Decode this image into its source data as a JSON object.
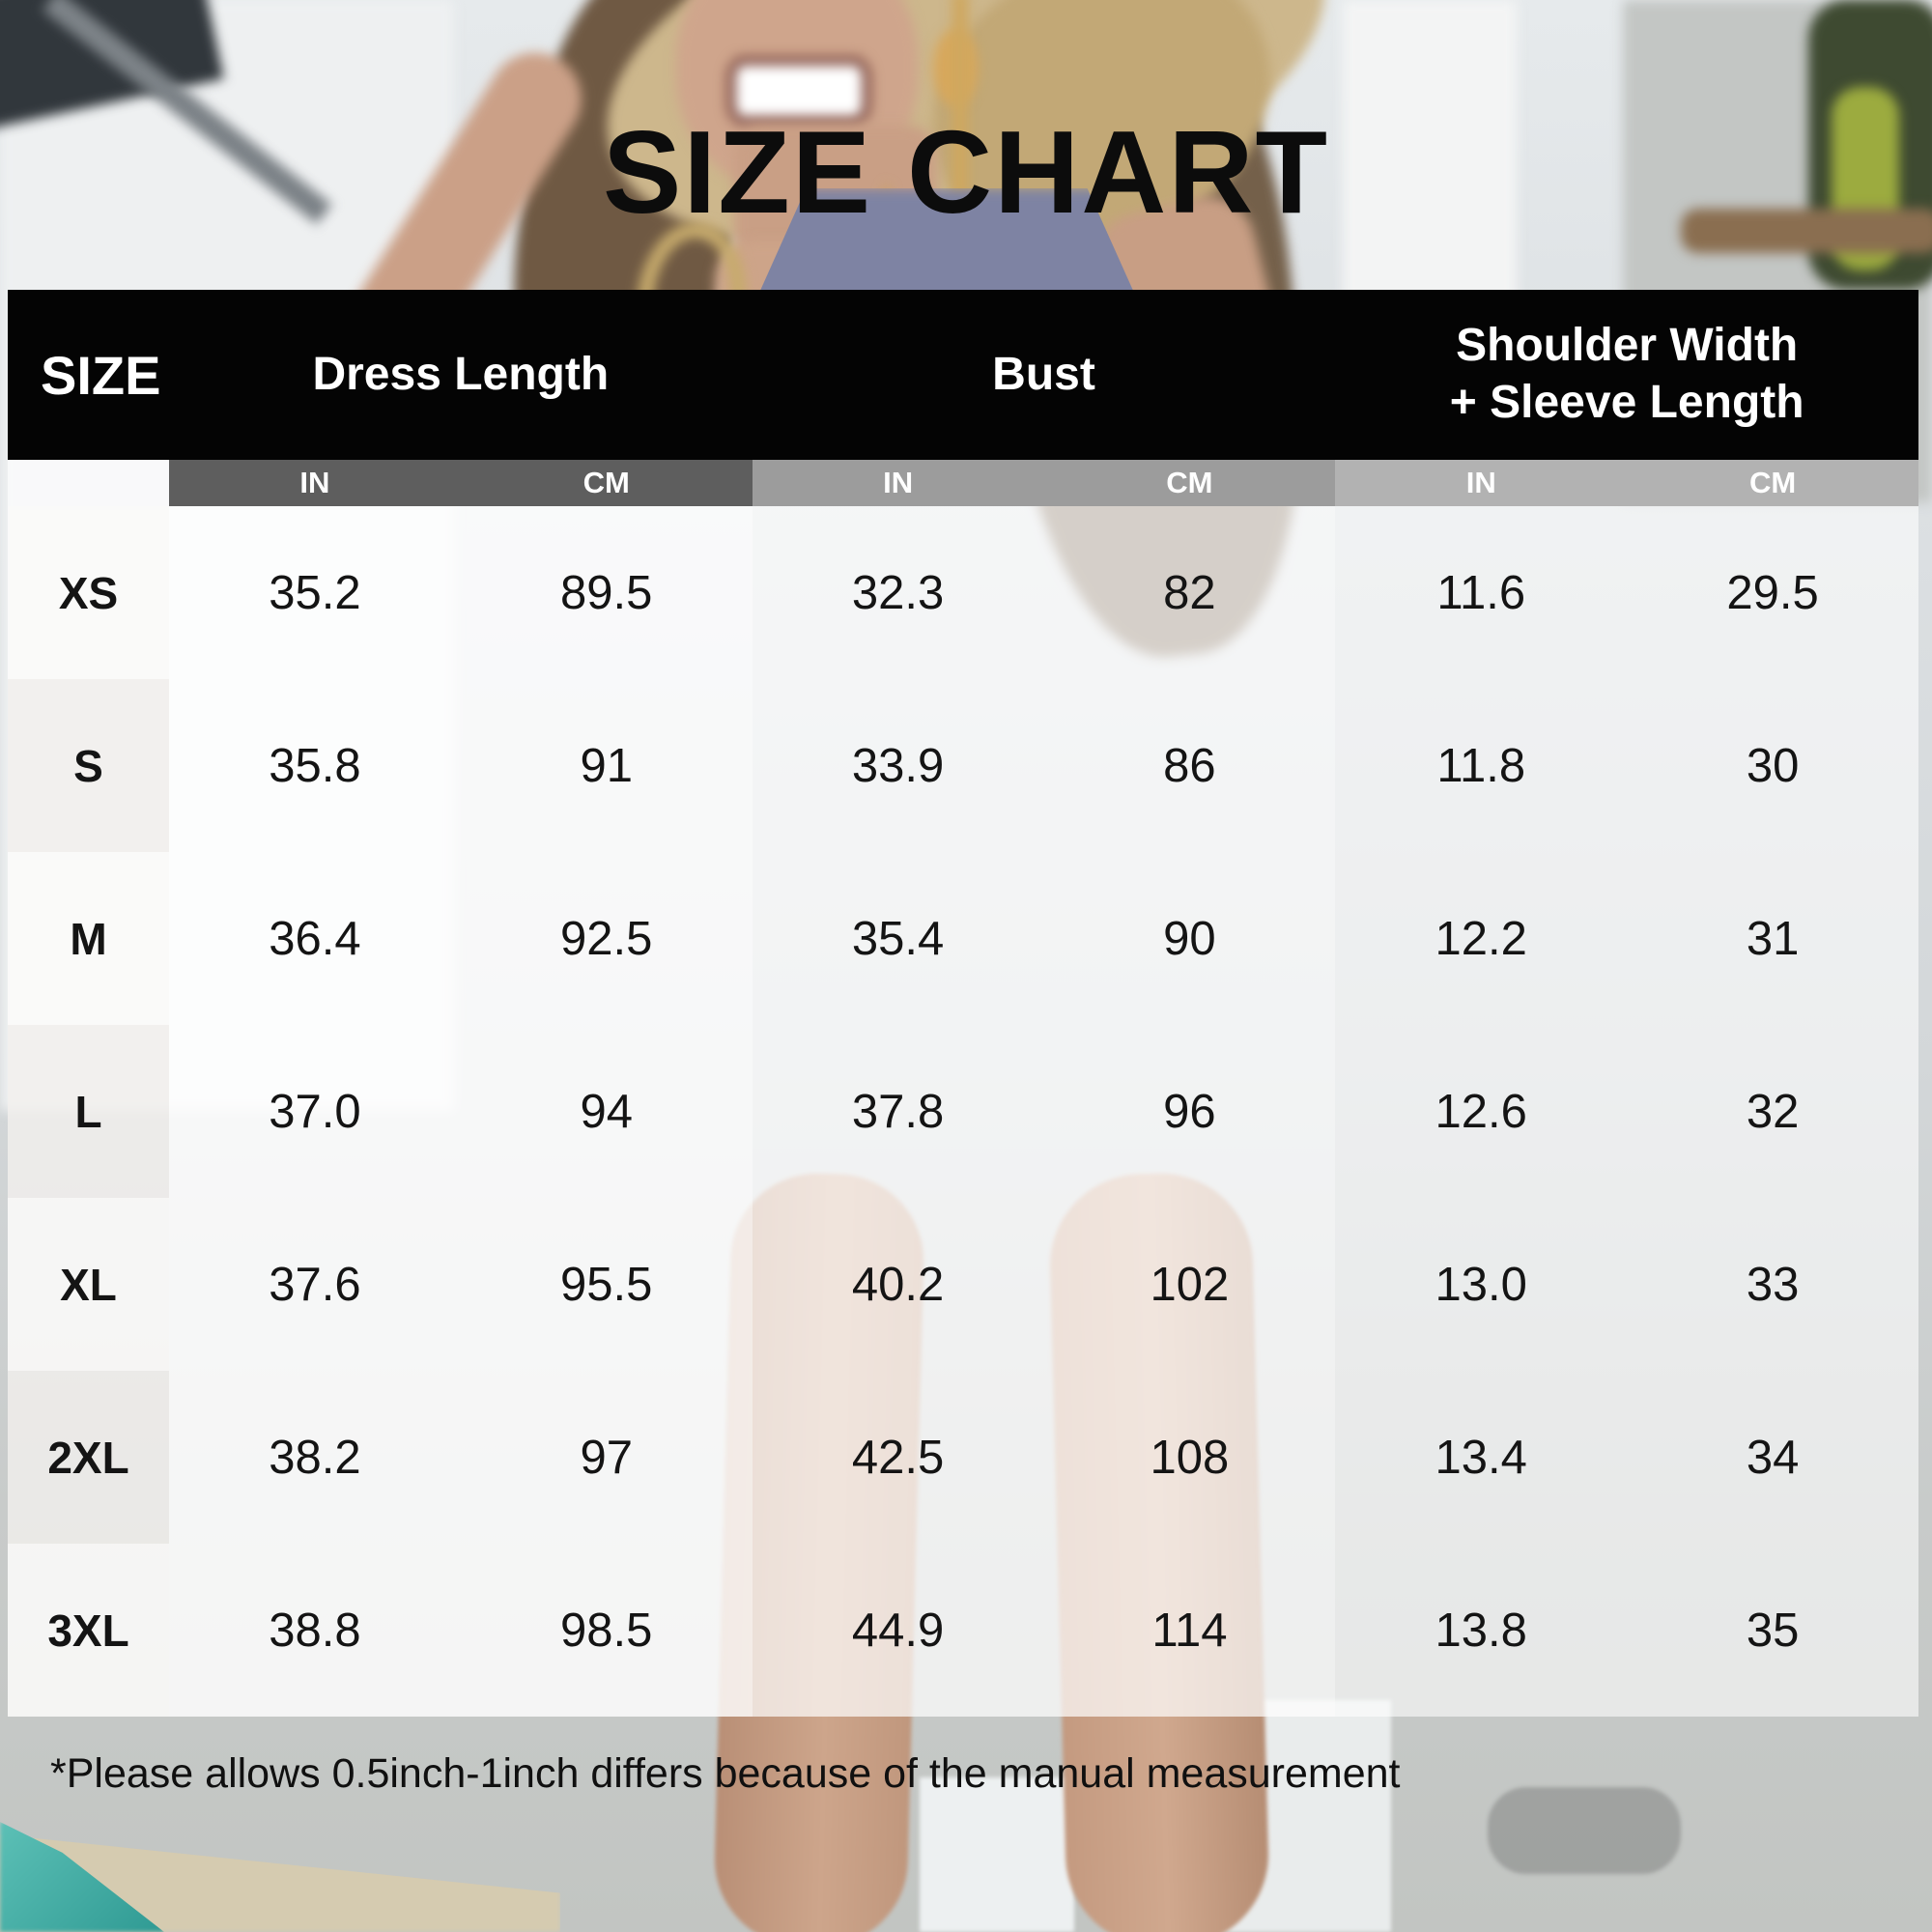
{
  "title": "SIZE CHART",
  "table": {
    "size_header": "SIZE",
    "groups": [
      {
        "label": "Dress Length",
        "label2": ""
      },
      {
        "label": "Bust",
        "label2": ""
      },
      {
        "label": "Shoulder Width",
        "label2": "+ Sleeve Length"
      }
    ],
    "unit_headers": [
      "IN",
      "CM",
      "IN",
      "CM",
      "IN",
      "CM"
    ],
    "rows": [
      {
        "size": "XS",
        "values": [
          "35.2",
          "89.5",
          "32.3",
          "82",
          "11.6",
          "29.5"
        ]
      },
      {
        "size": "S",
        "values": [
          "35.8",
          "91",
          "33.9",
          "86",
          "11.8",
          "30"
        ]
      },
      {
        "size": "M",
        "values": [
          "36.4",
          "92.5",
          "35.4",
          "90",
          "12.2",
          "31"
        ]
      },
      {
        "size": "L",
        "values": [
          "37.0",
          "94",
          "37.8",
          "96",
          "12.6",
          "32"
        ]
      },
      {
        "size": "XL",
        "values": [
          "37.6",
          "95.5",
          "40.2",
          "102",
          "13.0",
          "33"
        ]
      },
      {
        "size": "2XL",
        "values": [
          "38.2",
          "97",
          "42.5",
          "108",
          "13.4",
          "34"
        ]
      },
      {
        "size": "3XL",
        "values": [
          "38.8",
          "98.5",
          "44.9",
          "114",
          "13.8",
          "35"
        ]
      }
    ]
  },
  "footnote": "*Please allows 0.5inch-1inch differs because of the manual measurement",
  "colors": {
    "header_bg": "#040404",
    "header_text": "#ffffff",
    "unit_band_dress": "#5e5e5e",
    "unit_band_bust": "#9c9c9c",
    "unit_band_shoulder": "#b2b2b2",
    "body_text": "#141414",
    "pool_water": "#2f9a93",
    "tank_top": "#7e83a3",
    "straw_hat": "#cdb78c"
  },
  "chart_data": {
    "type": "table",
    "title": "SIZE CHART",
    "columns": [
      "SIZE",
      "Dress Length (IN)",
      "Dress Length (CM)",
      "Bust (IN)",
      "Bust (CM)",
      "Shoulder Width + Sleeve Length (IN)",
      "Shoulder Width + Sleeve Length (CM)"
    ],
    "rows": [
      [
        "XS",
        35.2,
        89.5,
        32.3,
        82,
        11.6,
        29.5
      ],
      [
        "S",
        35.8,
        91,
        33.9,
        86,
        11.8,
        30
      ],
      [
        "M",
        36.4,
        92.5,
        35.4,
        90,
        12.2,
        31
      ],
      [
        "L",
        37.0,
        94,
        37.8,
        96,
        12.6,
        32
      ],
      [
        "XL",
        37.6,
        95.5,
        40.2,
        102,
        13.0,
        33
      ],
      [
        "2XL",
        38.2,
        97,
        42.5,
        108,
        13.4,
        34
      ],
      [
        "3XL",
        38.8,
        98.5,
        44.9,
        114,
        13.8,
        35
      ]
    ],
    "footnote": "*Please allows 0.5inch-1inch differs because of the manual measurement"
  }
}
